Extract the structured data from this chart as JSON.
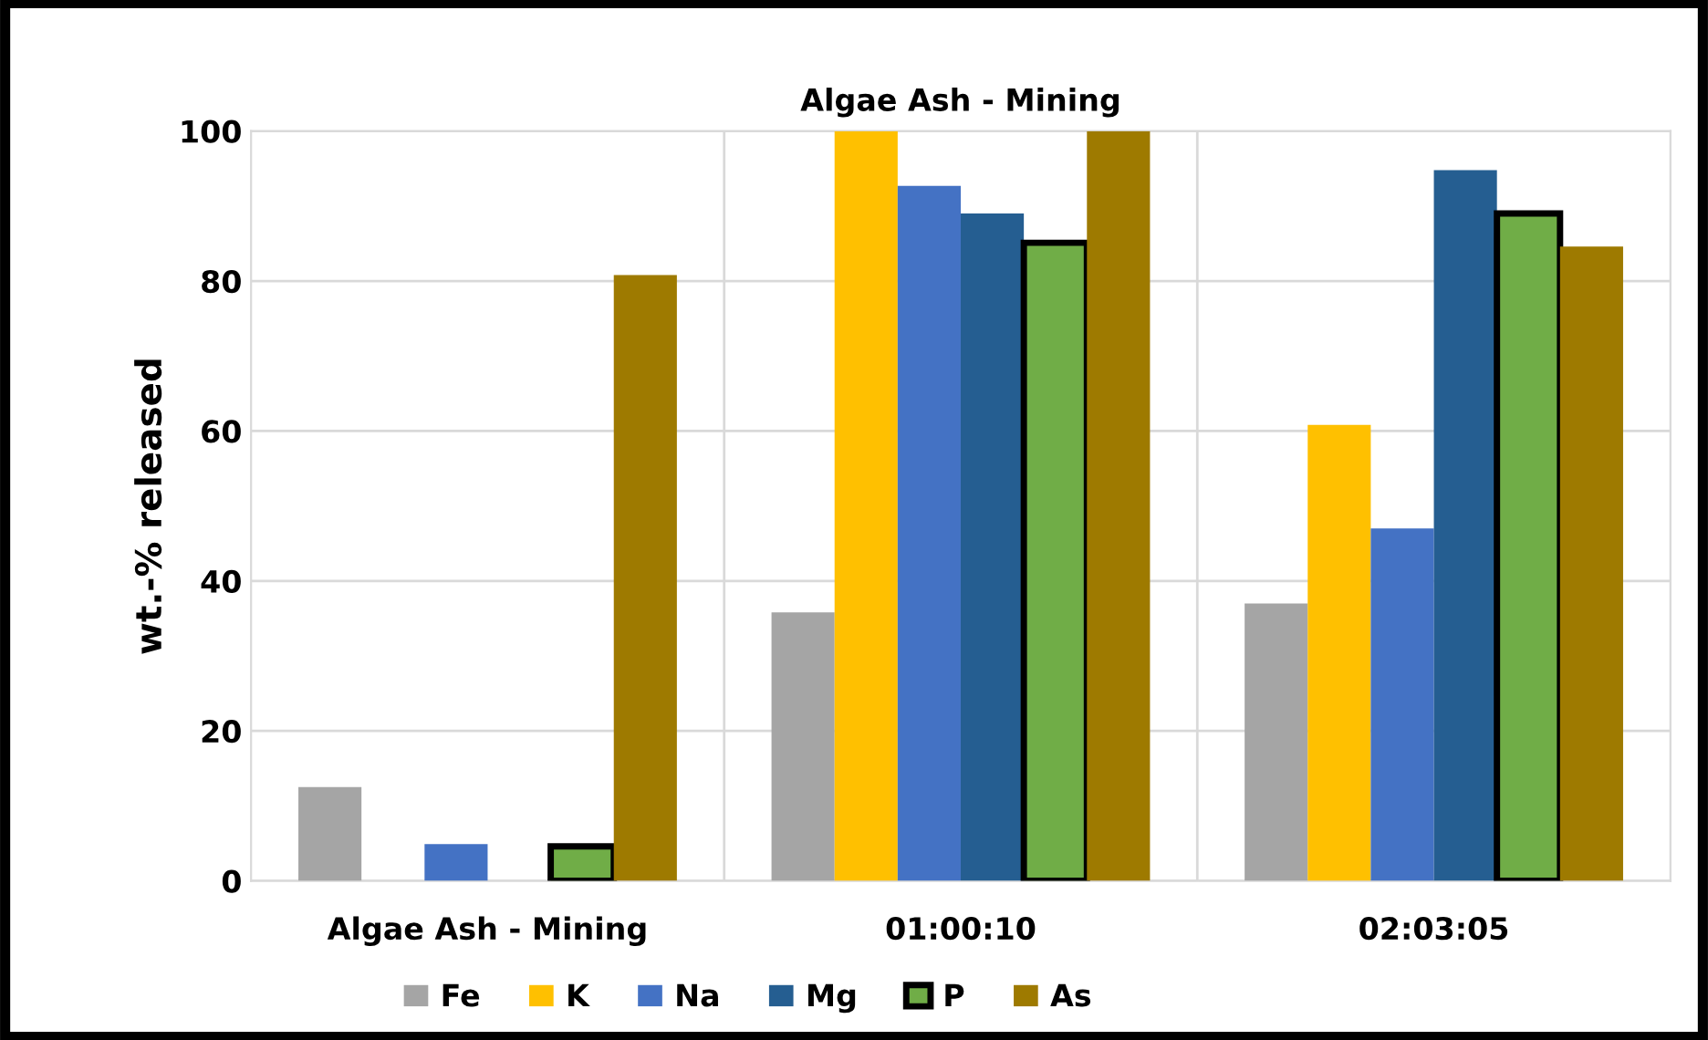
{
  "chart_data": {
    "type": "bar",
    "title": "Algae Ash - Mining",
    "ylabel": "wt.-% released",
    "categories": [
      "Algae Ash - Mining",
      "01:00:10",
      "02:03:05"
    ],
    "series": [
      {
        "name": "Fe",
        "color": "#a5a5a5",
        "values": [
          12.5,
          35.8,
          37.0
        ]
      },
      {
        "name": "K",
        "color": "#ffc000",
        "values": [
          null,
          100,
          60.8
        ]
      },
      {
        "name": "Na",
        "color": "#4472c4",
        "values": [
          4.9,
          92.7,
          47.0
        ]
      },
      {
        "name": "Mg",
        "color": "#255e91",
        "values": [
          null,
          89.0,
          94.8
        ]
      },
      {
        "name": "P",
        "color": "#70ad47",
        "values": [
          4.6,
          85.1,
          89.0
        ]
      },
      {
        "name": "As",
        "color": "#9e7a00",
        "values": [
          80.8,
          100,
          84.6
        ]
      }
    ],
    "ylim": [
      0,
      100
    ],
    "yticks": [
      0,
      20,
      40,
      60,
      80,
      100
    ],
    "grid": true,
    "legend": "bottom"
  }
}
